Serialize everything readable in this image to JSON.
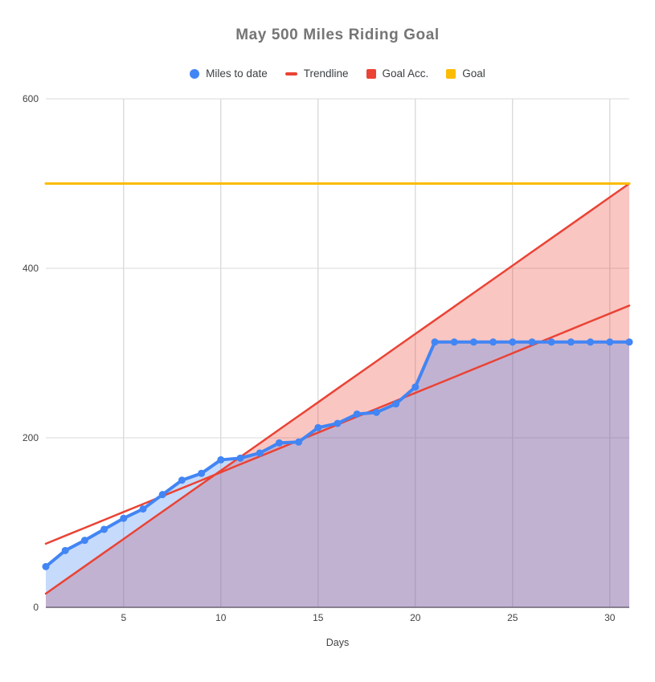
{
  "title": "May 500 Miles Riding Goal",
  "axis": {
    "xlabel": "Days"
  },
  "chart_data": {
    "type": "line",
    "title": "May 500 Miles Riding Goal",
    "xlabel": "Days",
    "ylabel": "",
    "xlim": [
      1,
      31
    ],
    "ylim": [
      0,
      600
    ],
    "yticks": [
      0,
      200,
      400,
      600
    ],
    "xticks": [
      5,
      10,
      15,
      20,
      25,
      30
    ],
    "grid": true,
    "legend_position": "top",
    "background": "#ffffff",
    "x": [
      1,
      2,
      3,
      4,
      5,
      6,
      7,
      8,
      9,
      10,
      11,
      12,
      13,
      14,
      15,
      16,
      17,
      18,
      19,
      20,
      21,
      22,
      23,
      24,
      25,
      26,
      27,
      28,
      29,
      30,
      31
    ],
    "series": [
      {
        "name": "Miles to date",
        "color": "#4285F4",
        "fill_opacity": 0.3,
        "style": "line-markers-area",
        "values": [
          48,
          67,
          79,
          92,
          105,
          116,
          133,
          150,
          158,
          174,
          176,
          182,
          194,
          195,
          212,
          217,
          228,
          230,
          240,
          260,
          313,
          313,
          313,
          313,
          313,
          313,
          313,
          313,
          313,
          313,
          313
        ]
      },
      {
        "name": "Trendline",
        "color": "#EA4335",
        "style": "line",
        "values": [
          75,
          84.4,
          93.7,
          103.1,
          112.5,
          121.8,
          131.2,
          140.6,
          149.9,
          159.3,
          168.7,
          178,
          187.4,
          196.8,
          206.1,
          215.5,
          224.9,
          234.2,
          243.6,
          253,
          262.3,
          271.7,
          281.1,
          290.4,
          299.8,
          309.2,
          318.5,
          327.9,
          337.3,
          346.6,
          356
        ]
      },
      {
        "name": "Goal Acc.",
        "color": "#EA4335",
        "fill_opacity": 0.3,
        "style": "line-area",
        "values": [
          16.1,
          32.3,
          48.4,
          64.5,
          80.6,
          96.8,
          112.9,
          129,
          145.2,
          161.3,
          177.4,
          193.5,
          209.7,
          225.8,
          241.9,
          258.1,
          274.2,
          290.3,
          306.5,
          322.6,
          338.7,
          354.8,
          371,
          387.1,
          403.2,
          419.4,
          435.5,
          451.6,
          467.7,
          483.9,
          500
        ]
      },
      {
        "name": "Goal",
        "color": "#FBBC04",
        "style": "line",
        "values": [
          500,
          500,
          500,
          500,
          500,
          500,
          500,
          500,
          500,
          500,
          500,
          500,
          500,
          500,
          500,
          500,
          500,
          500,
          500,
          500,
          500,
          500,
          500,
          500,
          500,
          500,
          500,
          500,
          500,
          500,
          500
        ]
      }
    ],
    "colors": {
      "gridline": "#cccccc",
      "axis_line": "#616161",
      "tick_label": "#424242",
      "title": "#757575",
      "legend_text": "#3c4043"
    }
  }
}
